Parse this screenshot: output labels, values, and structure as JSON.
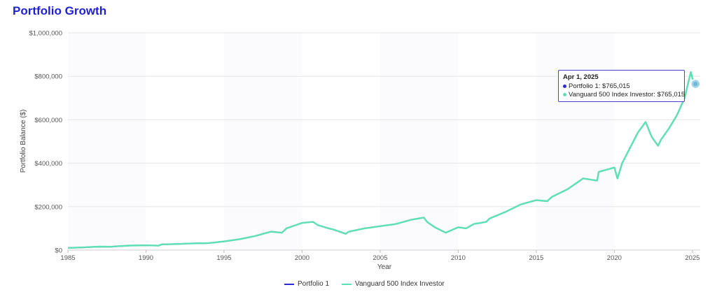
{
  "title": "Portfolio Growth",
  "colors": {
    "title": "#1f1fd6",
    "portfolio1": "#2b2bd6",
    "vanguard": "#5ee0b4",
    "grid": "#e6e6e6",
    "tooltip_border": "#4b3fd6"
  },
  "tooltip": {
    "date": "Apr 1, 2025",
    "rows": [
      "Portfolio 1: $765,015",
      "Vanguard 500 Index Investor: $765,015"
    ]
  },
  "chart_data": {
    "type": "line",
    "title": "",
    "xlabel": "Year",
    "ylabel": "Portfolio Balance ($)",
    "xlim": [
      1985,
      2025.5
    ],
    "ylim": [
      0,
      1000000
    ],
    "x_ticks": [
      "1985",
      "1990",
      "1995",
      "2000",
      "2005",
      "2010",
      "2015",
      "2020",
      "2025"
    ],
    "y_ticks": [
      "$0",
      "$200,000",
      "$400,000",
      "$600,000",
      "$800,000",
      "$1,000,000"
    ],
    "grid": true,
    "legend": "bottom-center",
    "x": [
      1985,
      1986,
      1987,
      1987.8,
      1988,
      1989,
      1990,
      1990.8,
      1991,
      1992,
      1993,
      1994,
      1995,
      1996,
      1997,
      1998,
      1998.7,
      1999,
      2000,
      2000.7,
      2001,
      2001.7,
      2002,
      2002.8,
      2003,
      2004,
      2005,
      2006,
      2007,
      2007.8,
      2008,
      2008.5,
      2009.2,
      2010,
      2010.5,
      2011,
      2011.8,
      2012,
      2013,
      2014,
      2015,
      2015.7,
      2016,
      2017,
      2018,
      2018.9,
      2019,
      2020,
      2020.2,
      2020.5,
      2021,
      2021.5,
      2022,
      2022.4,
      2022.8,
      2023,
      2023.5,
      2024,
      2024.5,
      2024.9,
      2025,
      2025.2
    ],
    "series": [
      {
        "name": "Portfolio 1",
        "values": [
          10000,
          12500,
          16000,
          15500,
          17000,
          21000,
          22000,
          20500,
          26000,
          28000,
          31000,
          32000,
          40000,
          50000,
          65000,
          85000,
          80000,
          100000,
          125000,
          130000,
          115000,
          100000,
          95000,
          75000,
          85000,
          100000,
          110000,
          120000,
          140000,
          150000,
          130000,
          105000,
          80000,
          105000,
          100000,
          120000,
          130000,
          145000,
          175000,
          210000,
          230000,
          225000,
          245000,
          280000,
          330000,
          320000,
          360000,
          380000,
          330000,
          400000,
          470000,
          540000,
          590000,
          520000,
          480000,
          510000,
          560000,
          620000,
          700000,
          820000,
          790000,
          765015
        ]
      },
      {
        "name": "Vanguard 500 Index Investor",
        "values": [
          10000,
          12500,
          16000,
          15500,
          17000,
          21000,
          22000,
          20500,
          26000,
          28000,
          31000,
          32000,
          40000,
          50000,
          65000,
          85000,
          80000,
          100000,
          125000,
          130000,
          115000,
          100000,
          95000,
          75000,
          85000,
          100000,
          110000,
          120000,
          140000,
          150000,
          130000,
          105000,
          80000,
          105000,
          100000,
          120000,
          130000,
          145000,
          175000,
          210000,
          230000,
          225000,
          245000,
          280000,
          330000,
          320000,
          360000,
          380000,
          330000,
          400000,
          470000,
          540000,
          590000,
          520000,
          480000,
          510000,
          560000,
          620000,
          700000,
          820000,
          790000,
          765015
        ]
      }
    ]
  }
}
